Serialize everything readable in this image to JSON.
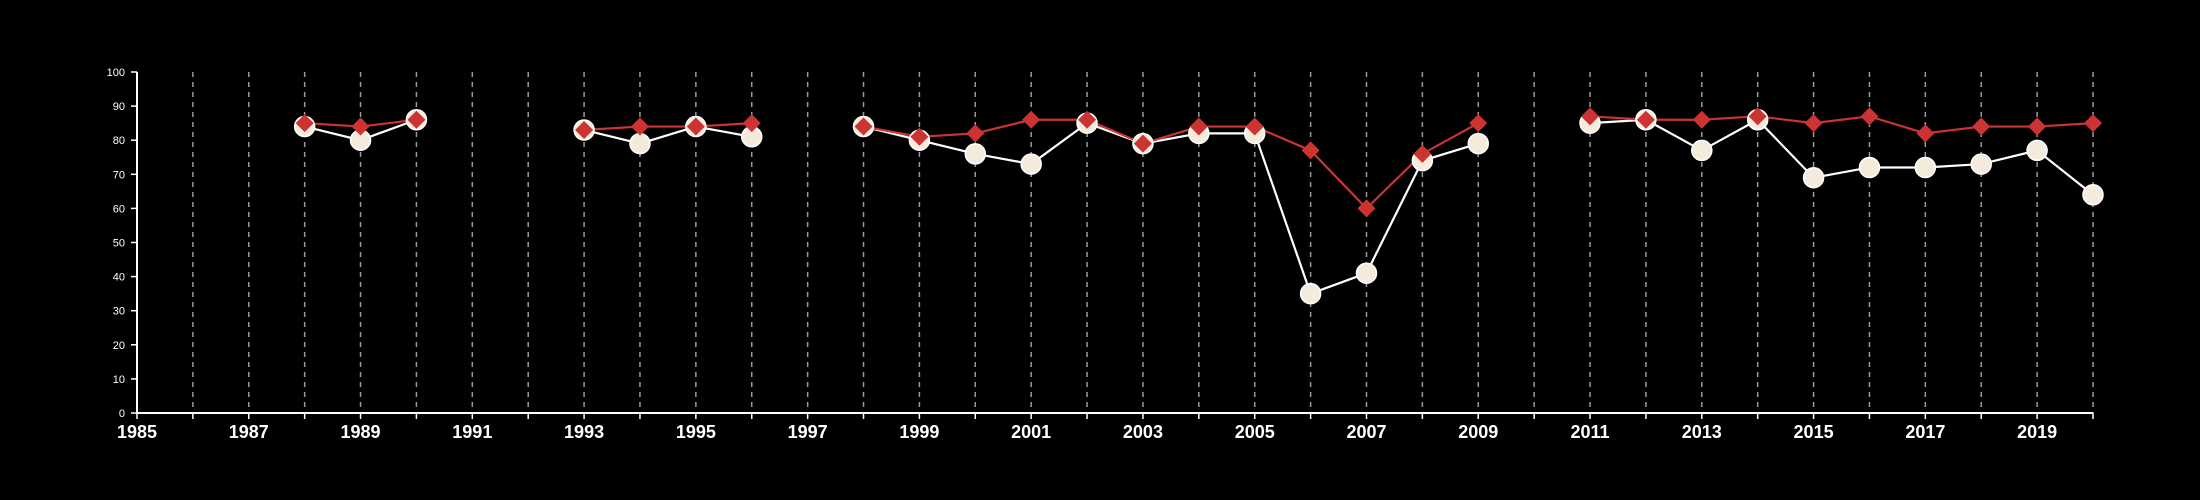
{
  "colors": {
    "background": "#000000",
    "axis": "#ffffff",
    "grid": "#9a9a9a",
    "series_light": "#f5ebdc",
    "series_light_line": "#ffffff",
    "series_red": "#cc3333"
  },
  "chart_data": {
    "type": "line",
    "title": "",
    "xlabel": "",
    "ylabel": "",
    "xlim": [
      1985,
      2020
    ],
    "ylim": [
      0,
      100
    ],
    "x_ticks": [
      1985,
      1987,
      1989,
      1991,
      1993,
      1995,
      1997,
      1999,
      2001,
      2003,
      2005,
      2007,
      2009,
      2011,
      2013,
      2015,
      2017,
      2019
    ],
    "y_ticks": [
      0,
      10,
      20,
      30,
      40,
      50,
      60,
      70,
      80,
      90,
      100
    ],
    "grid": "vertical dashed lines at every year",
    "legend": "none",
    "series": [
      {
        "marker": "circle",
        "color": "#f5ebdc",
        "points": [
          [
            1988,
            84
          ],
          [
            1989,
            80
          ],
          [
            1990,
            86
          ],
          [
            null,
            null
          ],
          [
            1993,
            83
          ],
          [
            1994,
            79
          ],
          [
            1995,
            84
          ],
          [
            1996,
            81
          ],
          [
            null,
            null
          ],
          [
            1998,
            84
          ],
          [
            1999,
            80
          ],
          [
            2000,
            76
          ],
          [
            2001,
            73
          ],
          [
            2002,
            85
          ],
          [
            2003,
            79
          ],
          [
            2004,
            82
          ],
          [
            2005,
            82
          ],
          [
            2006,
            35
          ],
          [
            2007,
            41
          ],
          [
            2008,
            74
          ],
          [
            2009,
            79
          ],
          [
            null,
            null
          ],
          [
            2011,
            85
          ],
          [
            2012,
            86
          ],
          [
            2013,
            77
          ],
          [
            2014,
            86
          ],
          [
            2015,
            69
          ],
          [
            2016,
            72
          ],
          [
            2017,
            72
          ],
          [
            2018,
            73
          ],
          [
            2019,
            77
          ],
          [
            2020,
            64
          ]
        ]
      },
      {
        "marker": "diamond",
        "color": "#cc3333",
        "points": [
          [
            1988,
            85
          ],
          [
            1989,
            84
          ],
          [
            1990,
            86
          ],
          [
            null,
            null
          ],
          [
            1993,
            83
          ],
          [
            1994,
            84
          ],
          [
            1995,
            84
          ],
          [
            1996,
            85
          ],
          [
            null,
            null
          ],
          [
            1998,
            84
          ],
          [
            1999,
            81
          ],
          [
            2000,
            82
          ],
          [
            2001,
            86
          ],
          [
            2002,
            86
          ],
          [
            2003,
            79
          ],
          [
            2004,
            84
          ],
          [
            2005,
            84
          ],
          [
            2006,
            77
          ],
          [
            2007,
            60
          ],
          [
            2008,
            76
          ],
          [
            2009,
            85
          ],
          [
            null,
            null
          ],
          [
            2011,
            87
          ],
          [
            2012,
            86
          ],
          [
            2013,
            86
          ],
          [
            2014,
            87
          ],
          [
            2015,
            85
          ],
          [
            2016,
            87
          ],
          [
            2017,
            82
          ],
          [
            2018,
            84
          ],
          [
            2019,
            84
          ],
          [
            2020,
            85
          ]
        ]
      }
    ]
  }
}
